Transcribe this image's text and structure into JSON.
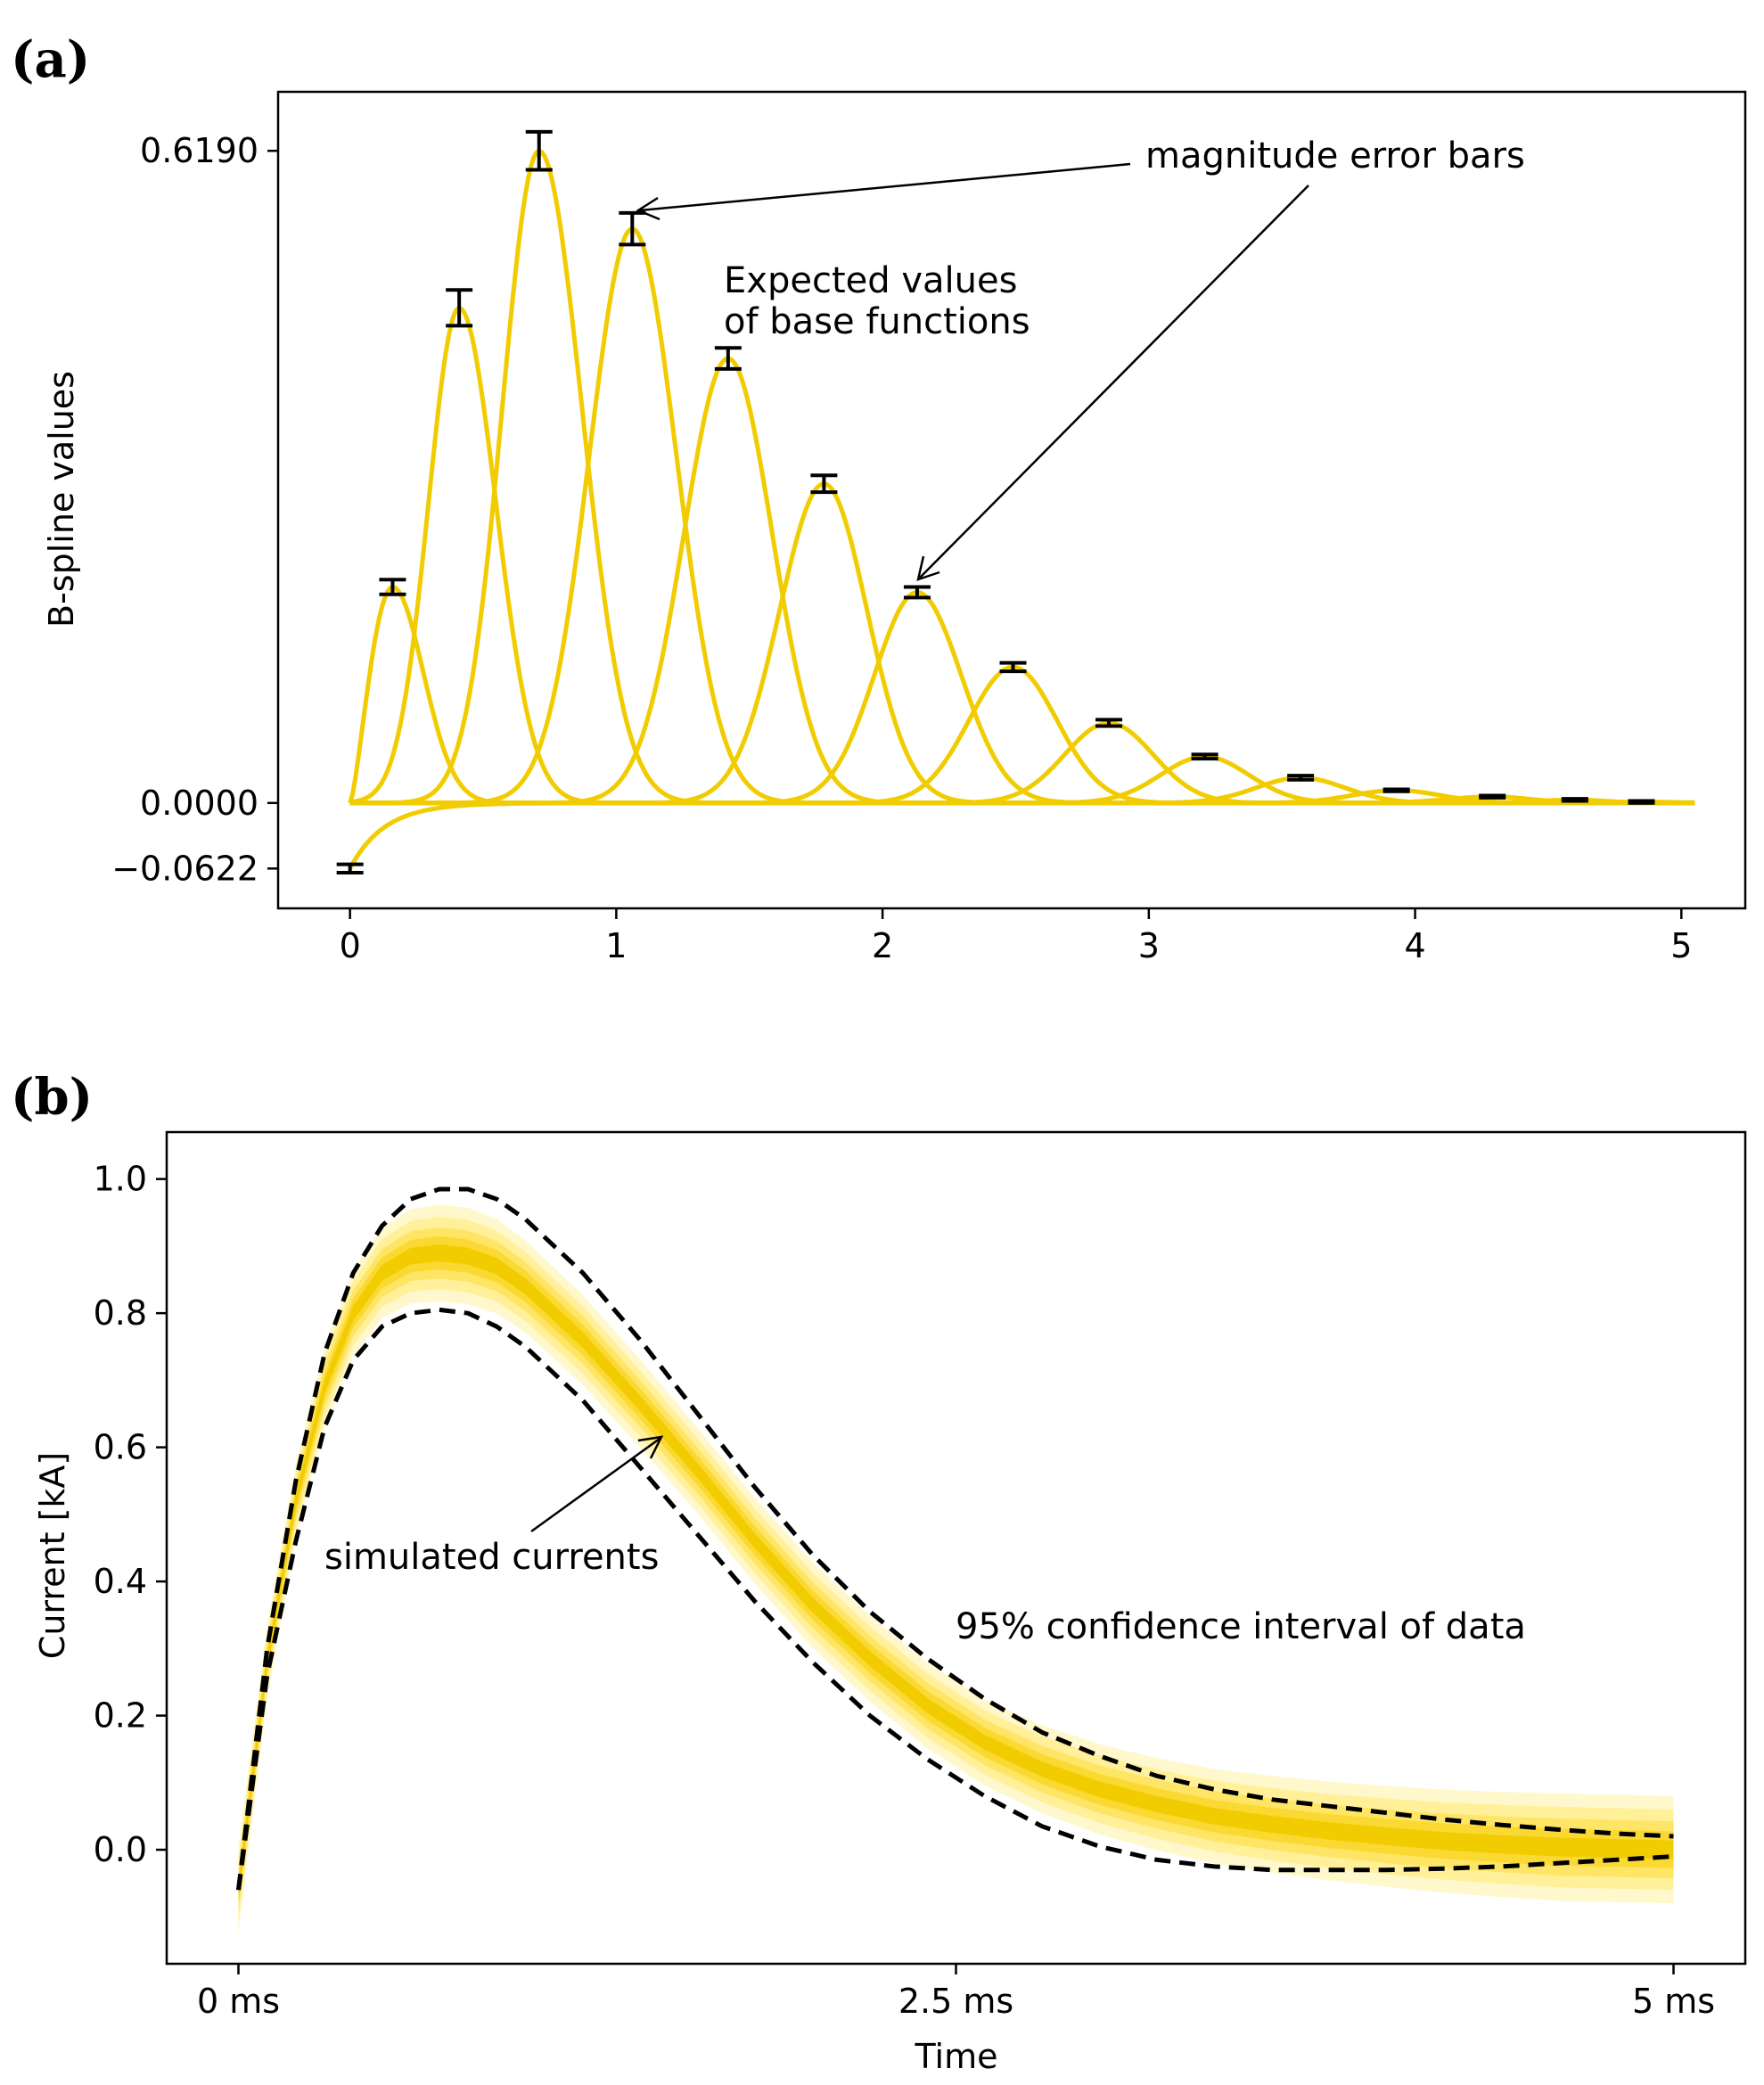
{
  "figure": {
    "colors": {
      "accent": "#f0cc00",
      "error_bar": "#000000",
      "axis": "#000000",
      "ci_line": "#000000"
    }
  },
  "chart_data": [
    {
      "type": "line",
      "panel_label": "(a)",
      "ylabel": "B-spline values",
      "xlabel": "",
      "xlim": [
        -0.27,
        5.24
      ],
      "ylim": [
        -0.1,
        0.675
      ],
      "x_ticks": [
        0,
        1,
        2,
        3,
        4,
        5
      ],
      "x_tick_labels": [
        "0",
        "1",
        "2",
        "3",
        "4",
        "5"
      ],
      "y_ticks": [
        0.619,
        0.0,
        -0.0622
      ],
      "y_tick_labels": [
        "0.6190",
        "0.0000",
        "−0.0622"
      ],
      "grid": false,
      "annotations": {
        "basis_label": [
          "Expected values",
          "of base functions"
        ],
        "error_label": "magnitude error bars"
      },
      "basis_peaks": [
        {
          "x": 0.0,
          "y": -0.0622,
          "err": 0.004
        },
        {
          "x": 0.16,
          "y": 0.205,
          "err": 0.007
        },
        {
          "x": 0.41,
          "y": 0.47,
          "err": 0.017
        },
        {
          "x": 0.71,
          "y": 0.619,
          "err": 0.018
        },
        {
          "x": 1.06,
          "y": 0.545,
          "err": 0.015
        },
        {
          "x": 1.42,
          "y": 0.422,
          "err": 0.01
        },
        {
          "x": 1.78,
          "y": 0.303,
          "err": 0.008
        },
        {
          "x": 2.13,
          "y": 0.2,
          "err": 0.005
        },
        {
          "x": 2.49,
          "y": 0.129,
          "err": 0.004
        },
        {
          "x": 2.85,
          "y": 0.076,
          "err": 0.003
        },
        {
          "x": 3.21,
          "y": 0.044,
          "err": 0.002
        },
        {
          "x": 3.57,
          "y": 0.024,
          "err": 0.002
        },
        {
          "x": 3.93,
          "y": 0.012,
          "err": 0.001
        },
        {
          "x": 4.29,
          "y": 0.006,
          "err": 0.001
        },
        {
          "x": 4.6,
          "y": 0.003,
          "err": 0.001
        },
        {
          "x": 4.85,
          "y": 0.001,
          "err": 0.001
        }
      ],
      "x_max": 5.05
    },
    {
      "type": "area",
      "panel_label": "(b)",
      "ylabel": "Current [kA]",
      "xlabel": "Time",
      "xlim": [
        -0.25,
        5.25
      ],
      "ylim": [
        -0.17,
        1.07
      ],
      "x_ticks": [
        0,
        2.5,
        5
      ],
      "x_tick_labels": [
        "0 ms",
        "2.5 ms",
        "5 ms"
      ],
      "y_ticks": [
        0.0,
        0.2,
        0.4,
        0.6,
        0.8,
        1.0
      ],
      "y_tick_labels": [
        "0.0",
        "0.2",
        "0.4",
        "0.6",
        "0.8",
        "1.0"
      ],
      "grid": false,
      "annotations": {
        "sim_label": "simulated currents",
        "ci_label": "95% confidence interval of data"
      },
      "series": [
        {
          "x": [
            0,
            0.1,
            0.2,
            0.3,
            0.4,
            0.5,
            0.6,
            0.7,
            0.8,
            0.9,
            1.0,
            1.2,
            1.4,
            1.6,
            1.8,
            2.0,
            2.2,
            2.4,
            2.6,
            2.8,
            3.0,
            3.2,
            3.4,
            3.6,
            3.8,
            4.0,
            4.2,
            4.4,
            4.6,
            4.8,
            5.0
          ],
          "upper": [
            -0.06,
            0.3,
            0.55,
            0.74,
            0.86,
            0.93,
            0.97,
            0.985,
            0.985,
            0.97,
            0.94,
            0.86,
            0.76,
            0.65,
            0.54,
            0.44,
            0.355,
            0.285,
            0.225,
            0.175,
            0.14,
            0.11,
            0.09,
            0.075,
            0.065,
            0.055,
            0.045,
            0.037,
            0.03,
            0.024,
            0.02
          ],
          "lower": [
            -0.06,
            0.26,
            0.46,
            0.63,
            0.73,
            0.78,
            0.8,
            0.805,
            0.8,
            0.78,
            0.75,
            0.67,
            0.57,
            0.47,
            0.37,
            0.28,
            0.2,
            0.135,
            0.08,
            0.035,
            0.005,
            -0.015,
            -0.025,
            -0.03,
            -0.03,
            -0.03,
            -0.028,
            -0.025,
            -0.02,
            -0.015,
            -0.01
          ],
          "mean": [
            -0.06,
            0.28,
            0.52,
            0.69,
            0.8,
            0.86,
            0.885,
            0.89,
            0.885,
            0.87,
            0.84,
            0.76,
            0.665,
            0.565,
            0.46,
            0.365,
            0.285,
            0.215,
            0.16,
            0.12,
            0.09,
            0.068,
            0.05,
            0.038,
            0.028,
            0.02,
            0.013,
            0.008,
            0.004,
            0.002,
            0.0
          ],
          "spread": [
            0.04,
            0.035,
            0.035,
            0.038,
            0.04,
            0.042,
            0.044,
            0.045,
            0.045,
            0.044,
            0.043,
            0.042,
            0.041,
            0.04,
            0.04,
            0.04,
            0.04,
            0.04,
            0.04,
            0.041,
            0.042,
            0.043,
            0.044,
            0.045,
            0.046,
            0.047,
            0.048,
            0.049,
            0.05,
            0.05,
            0.05
          ]
        }
      ]
    }
  ]
}
